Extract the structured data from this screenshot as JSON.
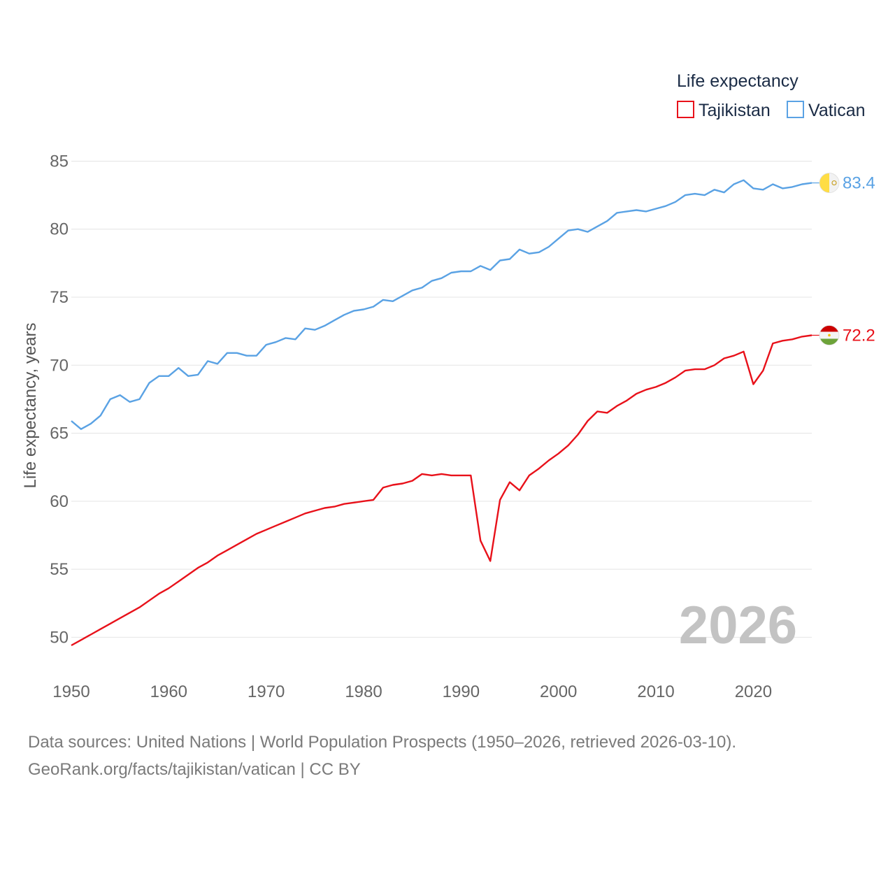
{
  "chart_data": {
    "type": "line",
    "legend_title": "Life expectancy",
    "ylabel": "Life expectancy, years",
    "xlabel": "",
    "ylim": [
      47.5,
      86
    ],
    "xlim": [
      1950,
      2026
    ],
    "yticks": [
      50,
      55,
      60,
      65,
      70,
      75,
      80,
      85
    ],
    "xticks": [
      1950,
      1960,
      1970,
      1980,
      1990,
      2000,
      2010,
      2020
    ],
    "year_label": "2026",
    "x": [
      1950,
      1951,
      1952,
      1953,
      1954,
      1955,
      1956,
      1957,
      1958,
      1959,
      1960,
      1961,
      1962,
      1963,
      1964,
      1965,
      1966,
      1967,
      1968,
      1969,
      1970,
      1971,
      1972,
      1973,
      1974,
      1975,
      1976,
      1977,
      1978,
      1979,
      1980,
      1981,
      1982,
      1983,
      1984,
      1985,
      1986,
      1987,
      1988,
      1989,
      1990,
      1991,
      1992,
      1993,
      1994,
      1995,
      1996,
      1997,
      1998,
      1999,
      2000,
      2001,
      2002,
      2003,
      2004,
      2005,
      2006,
      2007,
      2008,
      2009,
      2010,
      2011,
      2012,
      2013,
      2014,
      2015,
      2016,
      2017,
      2018,
      2019,
      2020,
      2021,
      2022,
      2023,
      2024,
      2025,
      2026
    ],
    "series": [
      {
        "name": "Tajikistan",
        "color": "#e8111a",
        "end_label": "72.2",
        "values": [
          49.4,
          49.8,
          50.2,
          50.6,
          51.0,
          51.4,
          51.8,
          52.2,
          52.7,
          53.2,
          53.6,
          54.1,
          54.6,
          55.1,
          55.5,
          56.0,
          56.4,
          56.8,
          57.2,
          57.6,
          57.9,
          58.2,
          58.5,
          58.8,
          59.1,
          59.3,
          59.5,
          59.6,
          59.8,
          59.9,
          60.0,
          60.1,
          61.0,
          61.2,
          61.3,
          61.5,
          62.0,
          61.9,
          62.0,
          61.9,
          61.9,
          61.9,
          57.1,
          55.6,
          60.1,
          61.4,
          60.8,
          61.9,
          62.4,
          63.0,
          63.5,
          64.1,
          64.9,
          65.9,
          66.6,
          66.5,
          67.0,
          67.4,
          67.9,
          68.2,
          68.4,
          68.7,
          69.1,
          69.6,
          69.7,
          69.7,
          70.0,
          70.5,
          70.7,
          71.0,
          68.6,
          69.6,
          71.6,
          71.8,
          71.9,
          72.1,
          72.2
        ]
      },
      {
        "name": "Vatican",
        "color": "#5aa2e4",
        "end_label": "83.4",
        "values": [
          65.9,
          65.3,
          65.7,
          66.3,
          67.5,
          67.8,
          67.3,
          67.5,
          68.7,
          69.2,
          69.2,
          69.8,
          69.2,
          69.3,
          70.3,
          70.1,
          70.9,
          70.9,
          70.7,
          70.7,
          71.5,
          71.7,
          72.0,
          71.9,
          72.7,
          72.6,
          72.9,
          73.3,
          73.7,
          74.0,
          74.1,
          74.3,
          74.8,
          74.7,
          75.1,
          75.5,
          75.7,
          76.2,
          76.4,
          76.8,
          76.9,
          76.9,
          77.3,
          77.0,
          77.7,
          77.8,
          78.5,
          78.2,
          78.3,
          78.7,
          79.3,
          79.9,
          80.0,
          79.8,
          80.2,
          80.6,
          81.2,
          81.3,
          81.4,
          81.3,
          81.5,
          81.7,
          82.0,
          82.5,
          82.6,
          82.5,
          82.9,
          82.7,
          83.3,
          83.6,
          83.0,
          82.9,
          83.3,
          83.0,
          83.1,
          83.3,
          83.4
        ]
      }
    ]
  },
  "footer": {
    "line1": "Data sources: United Nations | World Population Prospects (1950–2026, retrieved 2026-03-10).",
    "line2": "GeoRank.org/facts/tajikistan/vatican | CC BY"
  }
}
